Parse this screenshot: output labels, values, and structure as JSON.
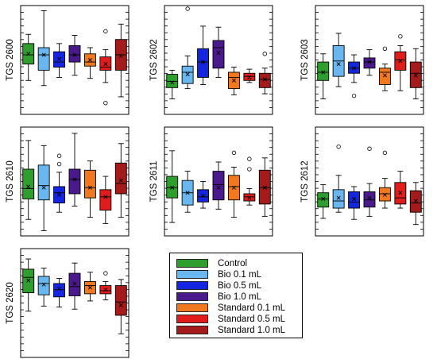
{
  "chart_data": {
    "type": "box",
    "series": [
      {
        "name": "Control",
        "color": "#2e9e2e"
      },
      {
        "name": "Bio 0.1 mL",
        "color": "#6ab7f0"
      },
      {
        "name": "Bio 0.5 mL",
        "color": "#1526e0"
      },
      {
        "name": "Bio 1.0 mL",
        "color": "#4a1a8c"
      },
      {
        "name": "Standard 0.1 mL",
        "color": "#f0781e"
      },
      {
        "name": "Standard 0.5 mL",
        "color": "#e01c1c"
      },
      {
        "name": "Standard 1.0 mL",
        "color": "#a51a1a"
      }
    ],
    "panels": [
      {
        "ylabel": "TGS 2600",
        "boxes": [
          {
            "min": 0.3,
            "q1": 0.46,
            "median": 0.55,
            "q3": 0.66,
            "max": 0.75,
            "mean": 0.56,
            "outliers": []
          },
          {
            "min": 0.25,
            "q1": 0.4,
            "median": 0.55,
            "q3": 0.62,
            "max": 0.98,
            "mean": 0.55,
            "outliers": []
          },
          {
            "min": 0.33,
            "q1": 0.43,
            "median": 0.48,
            "q3": 0.58,
            "max": 0.66,
            "mean": 0.51,
            "outliers": []
          },
          {
            "min": 0.35,
            "q1": 0.48,
            "median": 0.55,
            "q3": 0.64,
            "max": 0.74,
            "mean": 0.55,
            "outliers": []
          },
          {
            "min": 0.32,
            "q1": 0.44,
            "median": 0.48,
            "q3": 0.56,
            "max": 0.62,
            "mean": 0.5,
            "outliers": []
          },
          {
            "min": 0.28,
            "q1": 0.4,
            "median": 0.43,
            "q3": 0.53,
            "max": 0.6,
            "mean": 0.46,
            "outliers": [
              0.78,
              0.08
            ]
          },
          {
            "min": 0.14,
            "q1": 0.4,
            "median": 0.55,
            "q3": 0.7,
            "max": 0.85,
            "mean": 0.54,
            "outliers": []
          }
        ]
      },
      {
        "ylabel": "TGS 2602",
        "boxes": [
          {
            "min": 0.12,
            "q1": 0.23,
            "median": 0.29,
            "q3": 0.36,
            "max": 0.4,
            "mean": 0.28,
            "outliers": []
          },
          {
            "min": 0.22,
            "q1": 0.27,
            "median": 0.38,
            "q3": 0.44,
            "max": 0.54,
            "mean": 0.36,
            "outliers": [
              1.0
            ]
          },
          {
            "min": 0.26,
            "q1": 0.33,
            "median": 0.48,
            "q3": 0.61,
            "max": 0.83,
            "mean": 0.48,
            "outliers": []
          },
          {
            "min": 0.33,
            "q1": 0.42,
            "median": 0.62,
            "q3": 0.69,
            "max": 0.82,
            "mean": 0.57,
            "outliers": []
          },
          {
            "min": 0.16,
            "q1": 0.22,
            "median": 0.33,
            "q3": 0.38,
            "max": 0.43,
            "mean": 0.3,
            "outliers": []
          },
          {
            "min": 0.28,
            "q1": 0.3,
            "median": 0.34,
            "q3": 0.37,
            "max": 0.41,
            "mean": 0.33,
            "outliers": []
          },
          {
            "min": 0.17,
            "q1": 0.23,
            "median": 0.31,
            "q3": 0.37,
            "max": 0.42,
            "mean": 0.31,
            "outliers": [
              0.56
            ]
          }
        ]
      },
      {
        "ylabel": "TGS 2603",
        "boxes": [
          {
            "min": 0.12,
            "q1": 0.3,
            "median": 0.38,
            "q3": 0.48,
            "max": 0.56,
            "mean": 0.38,
            "outliers": []
          },
          {
            "min": 0.24,
            "q1": 0.34,
            "median": 0.49,
            "q3": 0.64,
            "max": 0.76,
            "mean": 0.46,
            "outliers": []
          },
          {
            "min": 0.28,
            "q1": 0.37,
            "median": 0.42,
            "q3": 0.48,
            "max": 0.55,
            "mean": 0.42,
            "outliers": [
              0.15
            ]
          },
          {
            "min": 0.35,
            "q1": 0.42,
            "median": 0.48,
            "q3": 0.52,
            "max": 0.6,
            "mean": 0.48,
            "outliers": []
          },
          {
            "min": 0.2,
            "q1": 0.26,
            "median": 0.38,
            "q3": 0.42,
            "max": 0.46,
            "mean": 0.35,
            "outliers": [
              0.61
            ]
          },
          {
            "min": 0.2,
            "q1": 0.4,
            "median": 0.5,
            "q3": 0.58,
            "max": 0.64,
            "mean": 0.49,
            "outliers": [
              0.73
            ]
          },
          {
            "min": 0.12,
            "q1": 0.23,
            "median": 0.37,
            "q3": 0.48,
            "max": 0.61,
            "mean": 0.35,
            "outliers": []
          }
        ]
      },
      {
        "ylabel": "TGS 2610",
        "boxes": [
          {
            "min": 0.13,
            "q1": 0.33,
            "median": 0.43,
            "q3": 0.62,
            "max": 0.9,
            "mean": 0.45,
            "outliers": []
          },
          {
            "min": 0.02,
            "q1": 0.32,
            "median": 0.46,
            "q3": 0.66,
            "max": 0.85,
            "mean": 0.44,
            "outliers": []
          },
          {
            "min": 0.2,
            "q1": 0.29,
            "median": 0.39,
            "q3": 0.45,
            "max": 0.59,
            "mean": 0.37,
            "outliers": [
              0.67,
              0.75
            ]
          },
          {
            "min": 0.26,
            "q1": 0.38,
            "median": 0.52,
            "q3": 0.62,
            "max": 0.97,
            "mean": 0.52,
            "outliers": []
          },
          {
            "min": 0.15,
            "q1": 0.34,
            "median": 0.44,
            "q3": 0.61,
            "max": 0.7,
            "mean": 0.44,
            "outliers": []
          },
          {
            "min": 0.09,
            "q1": 0.22,
            "median": 0.35,
            "q3": 0.42,
            "max": 0.55,
            "mean": 0.35,
            "outliers": []
          },
          {
            "min": 0.15,
            "q1": 0.38,
            "median": 0.48,
            "q3": 0.68,
            "max": 0.87,
            "mean": 0.51,
            "outliers": []
          }
        ]
      },
      {
        "ylabel": "TGS 2611",
        "boxes": [
          {
            "min": 0.1,
            "q1": 0.34,
            "median": 0.44,
            "q3": 0.55,
            "max": 0.8,
            "mean": 0.44,
            "outliers": []
          },
          {
            "min": 0.2,
            "q1": 0.27,
            "median": 0.39,
            "q3": 0.51,
            "max": 0.6,
            "mean": 0.39,
            "outliers": []
          },
          {
            "min": 0.24,
            "q1": 0.3,
            "median": 0.35,
            "q3": 0.42,
            "max": 0.5,
            "mean": 0.36,
            "outliers": []
          },
          {
            "min": 0.23,
            "q1": 0.32,
            "median": 0.47,
            "q3": 0.6,
            "max": 0.69,
            "mean": 0.44,
            "outliers": []
          },
          {
            "min": 0.15,
            "q1": 0.32,
            "median": 0.45,
            "q3": 0.56,
            "max": 0.64,
            "mean": 0.44,
            "outliers": [
              0.78
            ]
          },
          {
            "min": 0.27,
            "q1": 0.31,
            "median": 0.35,
            "q3": 0.38,
            "max": 0.43,
            "mean": 0.34,
            "outliers": [
              0.72,
              0.62
            ]
          },
          {
            "min": 0.16,
            "q1": 0.28,
            "median": 0.44,
            "q3": 0.61,
            "max": 0.73,
            "mean": 0.44,
            "outliers": []
          }
        ]
      },
      {
        "ylabel": "TGS 2612",
        "boxes": [
          {
            "min": 0.14,
            "q1": 0.25,
            "median": 0.33,
            "q3": 0.39,
            "max": 0.47,
            "mean": 0.33,
            "outliers": []
          },
          {
            "min": 0.2,
            "q1": 0.24,
            "median": 0.31,
            "q3": 0.42,
            "max": 0.56,
            "mean": 0.34,
            "outliers": [
              0.84
            ]
          },
          {
            "min": 0.13,
            "q1": 0.24,
            "median": 0.3,
            "q3": 0.4,
            "max": 0.45,
            "mean": 0.33,
            "outliers": []
          },
          {
            "min": 0.16,
            "q1": 0.25,
            "median": 0.32,
            "q3": 0.4,
            "max": 0.48,
            "mean": 0.34,
            "outliers": [
              0.82
            ]
          },
          {
            "min": 0.24,
            "q1": 0.31,
            "median": 0.38,
            "q3": 0.44,
            "max": 0.53,
            "mean": 0.37,
            "outliers": [
              0.78
            ]
          },
          {
            "min": 0.24,
            "q1": 0.28,
            "median": 0.34,
            "q3": 0.49,
            "max": 0.6,
            "mean": 0.39,
            "outliers": []
          },
          {
            "min": 0.08,
            "q1": 0.2,
            "median": 0.29,
            "q3": 0.41,
            "max": 0.49,
            "mean": 0.31,
            "outliers": []
          }
        ]
      },
      {
        "ylabel": "TGS 2620",
        "boxes": [
          {
            "min": 0.42,
            "q1": 0.6,
            "median": 0.75,
            "q3": 0.83,
            "max": 0.93,
            "mean": 0.72,
            "outliers": []
          },
          {
            "min": 0.47,
            "q1": 0.58,
            "median": 0.69,
            "q3": 0.76,
            "max": 0.84,
            "mean": 0.68,
            "outliers": []
          },
          {
            "min": 0.46,
            "q1": 0.56,
            "median": 0.63,
            "q3": 0.69,
            "max": 0.74,
            "mean": 0.64,
            "outliers": []
          },
          {
            "min": 0.44,
            "q1": 0.57,
            "median": 0.66,
            "q3": 0.79,
            "max": 0.89,
            "mean": 0.69,
            "outliers": []
          },
          {
            "min": 0.52,
            "q1": 0.59,
            "median": 0.67,
            "q3": 0.71,
            "max": 0.8,
            "mean": 0.65,
            "outliers": []
          },
          {
            "min": 0.53,
            "q1": 0.59,
            "median": 0.62,
            "q3": 0.67,
            "max": 0.71,
            "mean": 0.63,
            "outliers": [
              0.79
            ]
          },
          {
            "min": 0.2,
            "q1": 0.38,
            "median": 0.51,
            "q3": 0.67,
            "max": 0.73,
            "mean": 0.48,
            "outliers": []
          }
        ]
      }
    ]
  }
}
